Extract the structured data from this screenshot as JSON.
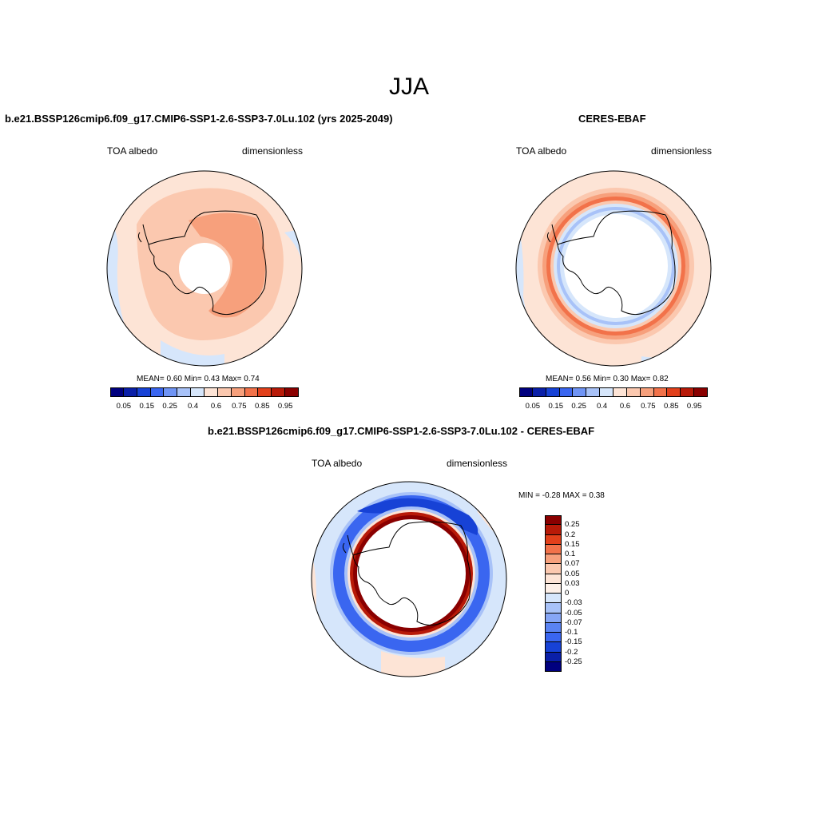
{
  "page": {
    "season": "JJA"
  },
  "panels": {
    "model": {
      "title": "b.e21.BSSP126cmip6.f09_g17.CMIP6-SSP1-2.6-SSP3-7.0Lu.102 (yrs 2025-2049)",
      "variable": "TOA albedo",
      "units": "dimensionless",
      "stats": {
        "mean_label": "MEAN=",
        "mean": "0.60",
        "min_label": "Min=",
        "min": "0.43",
        "max_label": "Max=",
        "max": "0.74"
      }
    },
    "obs": {
      "title": "CERES-EBAF",
      "variable": "TOA albedo",
      "units": "dimensionless",
      "stats": {
        "mean_label": "MEAN=",
        "mean": "0.56",
        "min_label": "Min=",
        "min": "0.30",
        "max_label": "Max=",
        "max": "0.82"
      }
    },
    "diff": {
      "title": "b.e21.BSSP126cmip6.f09_g17.CMIP6-SSP1-2.6-SSP3-7.0Lu.102 - CERES-EBAF",
      "variable": "TOA albedo",
      "units": "dimensionless",
      "stats": {
        "min_label": "MIN =",
        "min": "-0.28",
        "max_label": "MAX =",
        "max": "0.38"
      }
    }
  },
  "chart_data": [
    {
      "type": "heatmap",
      "projection": "south-polar-stereographic",
      "title": "b.e21.BSSP126cmip6.f09_g17.CMIP6-SSP1-2.6-SSP3-7.0Lu.102 (yrs 2025-2049)",
      "variable": "TOA albedo",
      "units": "dimensionless",
      "mean": 0.6,
      "min": 0.43,
      "max": 0.74,
      "colorbar": {
        "orientation": "horizontal",
        "tick_labels": [
          "0.05",
          "0.15",
          "0.25",
          "0.4",
          "0.6",
          "0.75",
          "0.85",
          "0.95"
        ],
        "colors": [
          "#00007f",
          "#0a1fa8",
          "#1742d6",
          "#3a66f0",
          "#6f94f5",
          "#a8c2f8",
          "#d6e6fb",
          "#fde4d6",
          "#fbc8af",
          "#f7a07c",
          "#f2724a",
          "#e2401b",
          "#b81a08",
          "#8a0000"
        ]
      }
    },
    {
      "type": "heatmap",
      "projection": "south-polar-stereographic",
      "title": "CERES-EBAF",
      "variable": "TOA albedo",
      "units": "dimensionless",
      "mean": 0.56,
      "min": 0.3,
      "max": 0.82,
      "colorbar": {
        "orientation": "horizontal",
        "tick_labels": [
          "0.05",
          "0.15",
          "0.25",
          "0.4",
          "0.6",
          "0.75",
          "0.85",
          "0.95"
        ],
        "colors": [
          "#00007f",
          "#0a1fa8",
          "#1742d6",
          "#3a66f0",
          "#6f94f5",
          "#a8c2f8",
          "#d6e6fb",
          "#fde4d6",
          "#fbc8af",
          "#f7a07c",
          "#f2724a",
          "#e2401b",
          "#b81a08",
          "#8a0000"
        ]
      }
    },
    {
      "type": "heatmap",
      "projection": "south-polar-stereographic",
      "title": "b.e21.BSSP126cmip6.f09_g17.CMIP6-SSP1-2.6-SSP3-7.0Lu.102 - CERES-EBAF",
      "variable": "TOA albedo",
      "units": "dimensionless",
      "min": -0.28,
      "max": 0.38,
      "colorbar": {
        "orientation": "vertical",
        "tick_labels": [
          "0.25",
          "0.2",
          "0.15",
          "0.1",
          "0.07",
          "0.05",
          "0.03",
          "0",
          "-0.03",
          "-0.05",
          "-0.07",
          "-0.1",
          "-0.15",
          "-0.2",
          "-0.25"
        ],
        "colors": [
          "#8a0000",
          "#b81a08",
          "#e2401b",
          "#f2724a",
          "#f7a07c",
          "#fbc8af",
          "#fde4d6",
          "#fdf0e8",
          "#d6e6fb",
          "#a8c2f8",
          "#86a6f6",
          "#5a83f2",
          "#3a66f0",
          "#1742d6",
          "#0a1fa8",
          "#00007f"
        ]
      }
    }
  ]
}
